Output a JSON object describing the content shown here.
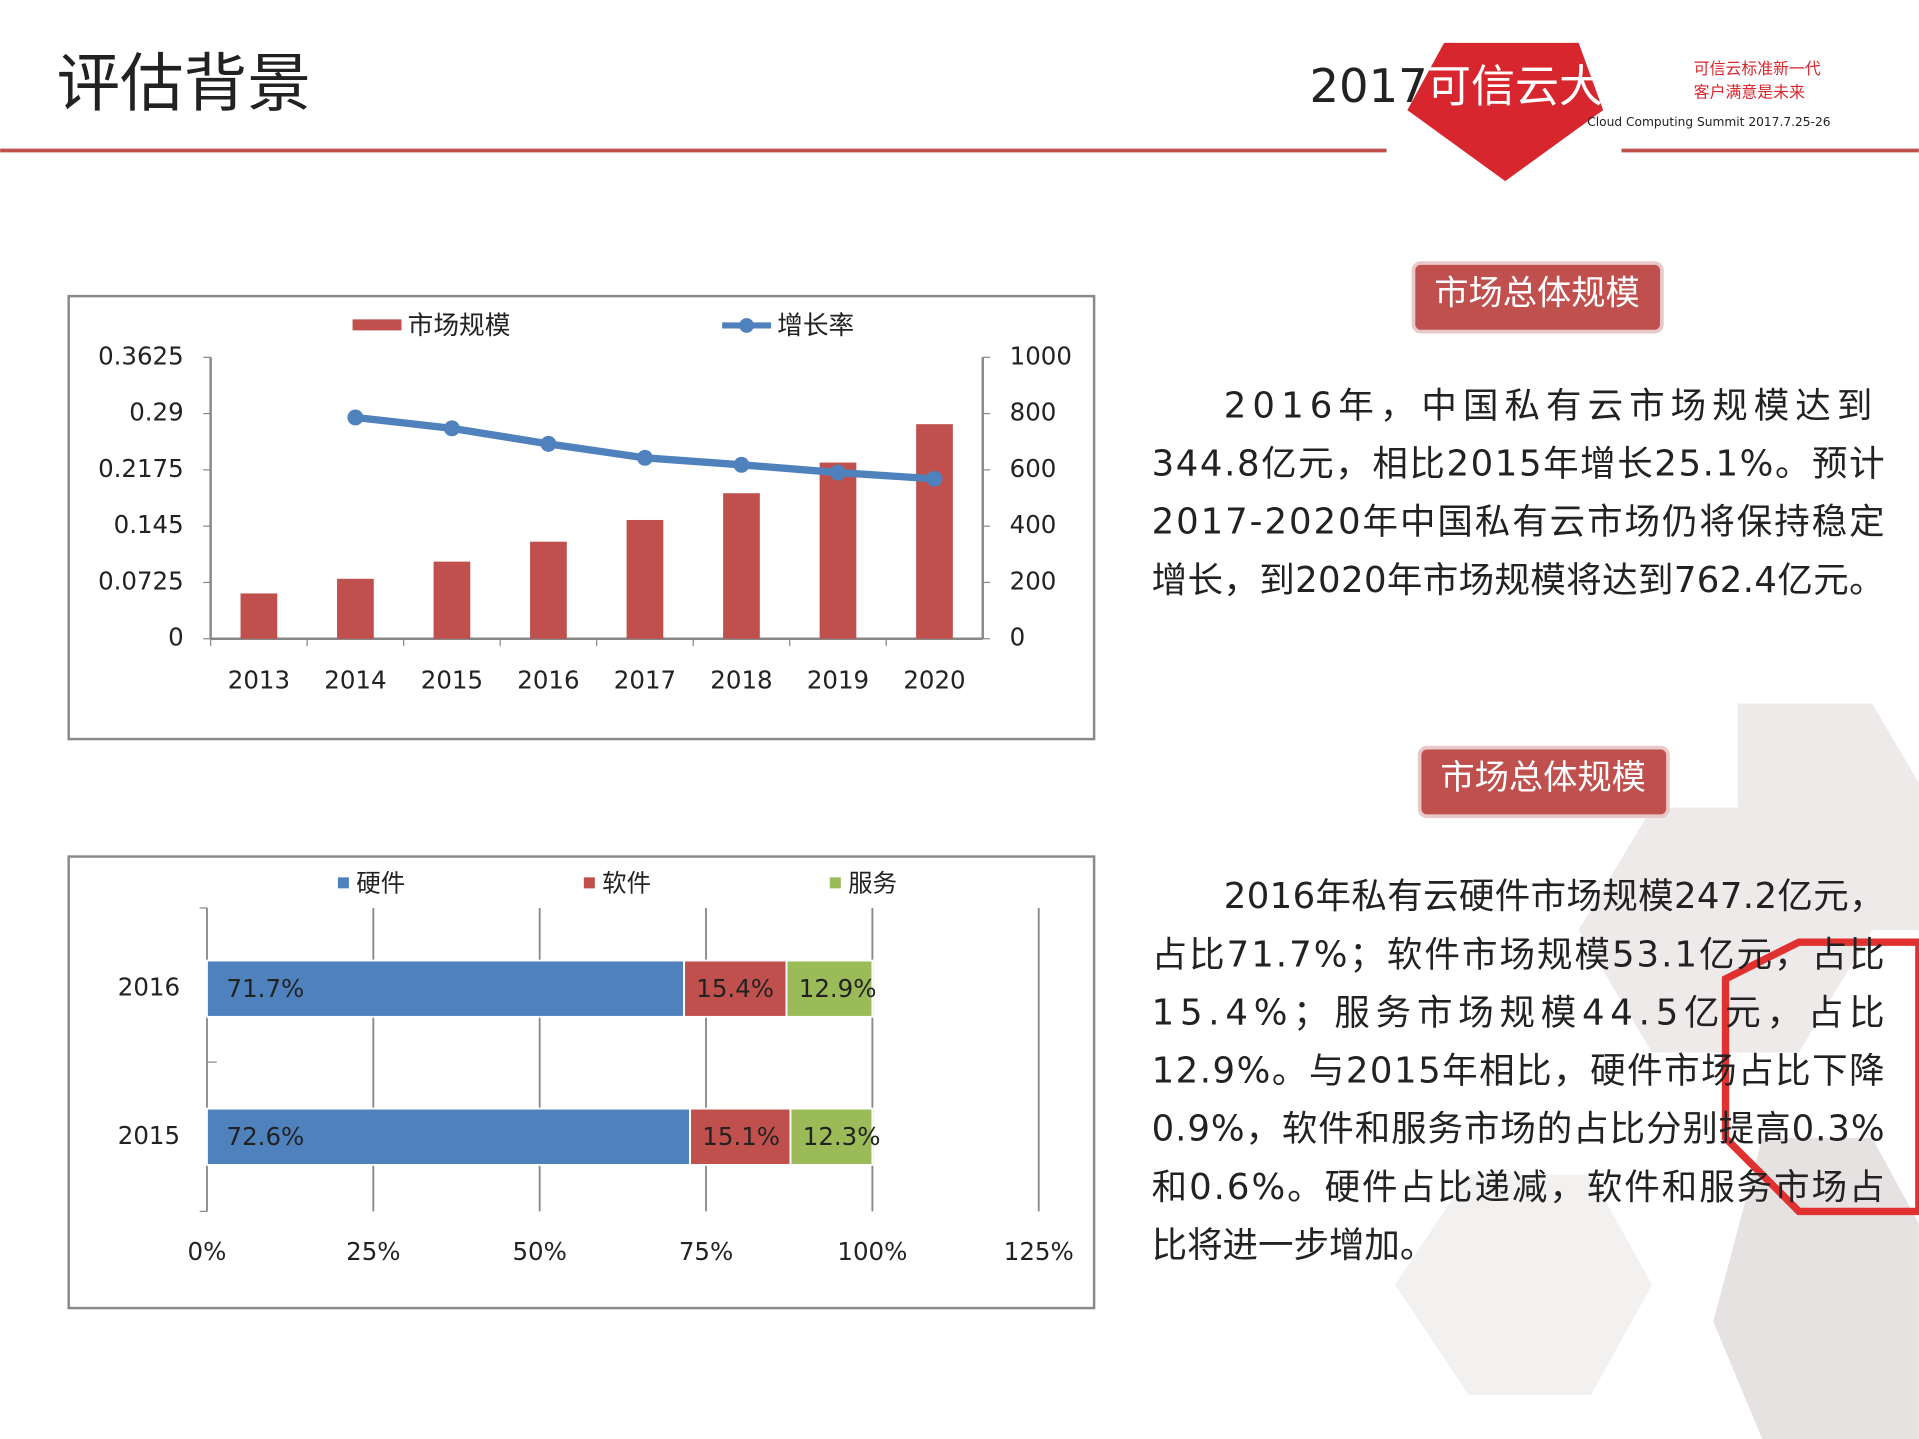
{
  "header": {
    "title": "评估背景",
    "logo_year": "2017",
    "logo_name": "可信云大会",
    "slogan_1": "可信云标准新一代",
    "slogan_2": "客户满意是未来",
    "summit": "Cloud Computing Summit 2017.7.25-26"
  },
  "chart_data": [
    {
      "type": "bar-line",
      "categories": [
        "2013",
        "2014",
        "2015",
        "2016",
        "2017",
        "2018",
        "2019",
        "2020"
      ],
      "series": [
        {
          "name": "市场规模",
          "type": "bar",
          "color": "#c0504d",
          "axis": "y2",
          "values": [
            161,
            213,
            274,
            344.8,
            422,
            517,
            626,
            762.4
          ]
        },
        {
          "name": "增长率",
          "type": "line",
          "color": "#4f81bd",
          "values": [
            null,
            0.285,
            0.271,
            0.251,
            0.233,
            0.224,
            0.214,
            0.206
          ]
        }
      ],
      "ylim": [
        0,
        0.3625
      ],
      "yticks": [
        0,
        0.0725,
        0.145,
        0.2175,
        0.29,
        0.3625
      ],
      "y2lim": [
        0,
        1000
      ],
      "y2ticks": [
        0,
        200,
        400,
        600,
        800,
        1000
      ],
      "legend": "top"
    },
    {
      "type": "stacked-hbar",
      "categories": [
        "2016",
        "2015"
      ],
      "series": [
        {
          "name": "硬件",
          "color": "#4f81bd",
          "values": [
            71.7,
            72.6
          ],
          "value_labels": [
            "71.7%",
            "72.6%"
          ]
        },
        {
          "name": "软件",
          "color": "#c0504d",
          "values": [
            15.4,
            15.1
          ],
          "value_labels": [
            "15.4%",
            "15.1%"
          ]
        },
        {
          "name": "服务",
          "color": "#9bbb59",
          "values": [
            12.9,
            12.3
          ],
          "value_labels": [
            "12.9%",
            "12.3%"
          ]
        }
      ],
      "xlim": [
        0,
        125
      ],
      "xticks": [
        {
          "value": 0,
          "label": "0%"
        },
        {
          "value": 25,
          "label": "25%"
        },
        {
          "value": 50,
          "label": "50%"
        },
        {
          "value": 75,
          "label": "75%"
        },
        {
          "value": 100,
          "label": "100%"
        },
        {
          "value": 125,
          "label": "125%"
        }
      ],
      "grid": true,
      "legend": "top"
    }
  ],
  "panels": [
    {
      "badge": "市场总体规模",
      "lines": [
        "2016年，中国私有云市场规模达到",
        "344.8亿元，相比2015年增长25.1%。预计",
        "2017-2020年中国私有云市场仍将保持稳定",
        "增长，到2020年市场规模将达到762.4亿元。"
      ]
    },
    {
      "badge": "市场总体规模",
      "lines": [
        "2016年私有云硬件市场规模247.2亿元，",
        "占比71.7%；软件市场规模53.1亿元，占比",
        "15.4%；服务市场规模44.5亿元，占比",
        "12.9%。与2015年相比，硬件市场占比下降",
        "0.9%，软件和服务市场的占比分别提高0.3%",
        "和0.6%。硬件占比递减，软件和服务市场占",
        "比将进一步增加。"
      ]
    }
  ]
}
